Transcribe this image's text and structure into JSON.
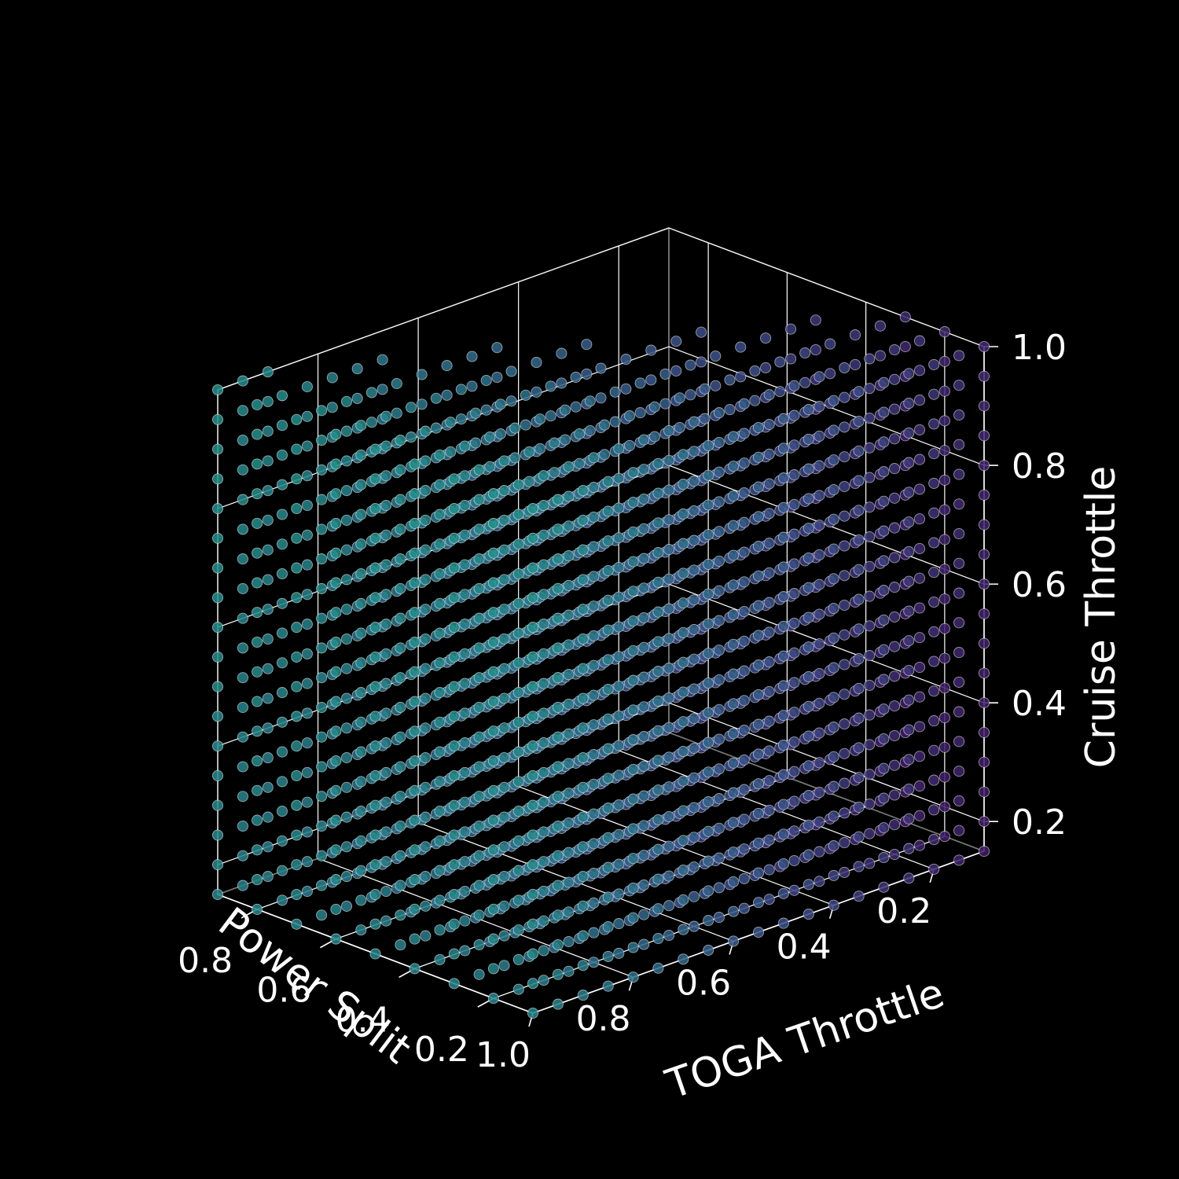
{
  "chart_data": {
    "type": "scatter",
    "projection": "3d",
    "xlabel": "TOGA Throttle",
    "ylabel": "Power Split",
    "zlabel": "Cruise Throttle",
    "xlim": [
      0.1,
      1.0
    ],
    "ylim": [
      0.1,
      0.9
    ],
    "zlim": [
      0.15,
      1.0
    ],
    "x_ticks": [
      "0.2",
      "0.4",
      "0.6",
      "0.8",
      "1.0"
    ],
    "y_ticks": [
      "0.2",
      "0.4",
      "0.6",
      "0.8"
    ],
    "z_ticks": [
      "0.2",
      "0.4",
      "0.6",
      "0.8",
      "1.0"
    ],
    "grid": true,
    "background": "#000000",
    "colormap": "viridis (purple to teal)",
    "color_low": "#440154",
    "color_mid": "#3b528b",
    "color_high": "#21918c",
    "grid_sample": {
      "toga_throttle_values": [
        0.1,
        0.15,
        0.2,
        0.25,
        0.3,
        0.35,
        0.4,
        0.45,
        0.5,
        0.55,
        0.6,
        0.65,
        0.7,
        0.75,
        0.8,
        0.85,
        0.9,
        0.95,
        1.0
      ],
      "power_split_values": [
        0.1,
        0.2,
        0.3,
        0.4,
        0.5,
        0.6,
        0.7,
        0.8,
        0.9
      ],
      "cruise_throttle_values": [
        0.15,
        0.2,
        0.25,
        0.3,
        0.35,
        0.4,
        0.45,
        0.5,
        0.55,
        0.6,
        0.65,
        0.7,
        0.75,
        0.8,
        0.85,
        0.9,
        0.95,
        1.0
      ]
    }
  }
}
